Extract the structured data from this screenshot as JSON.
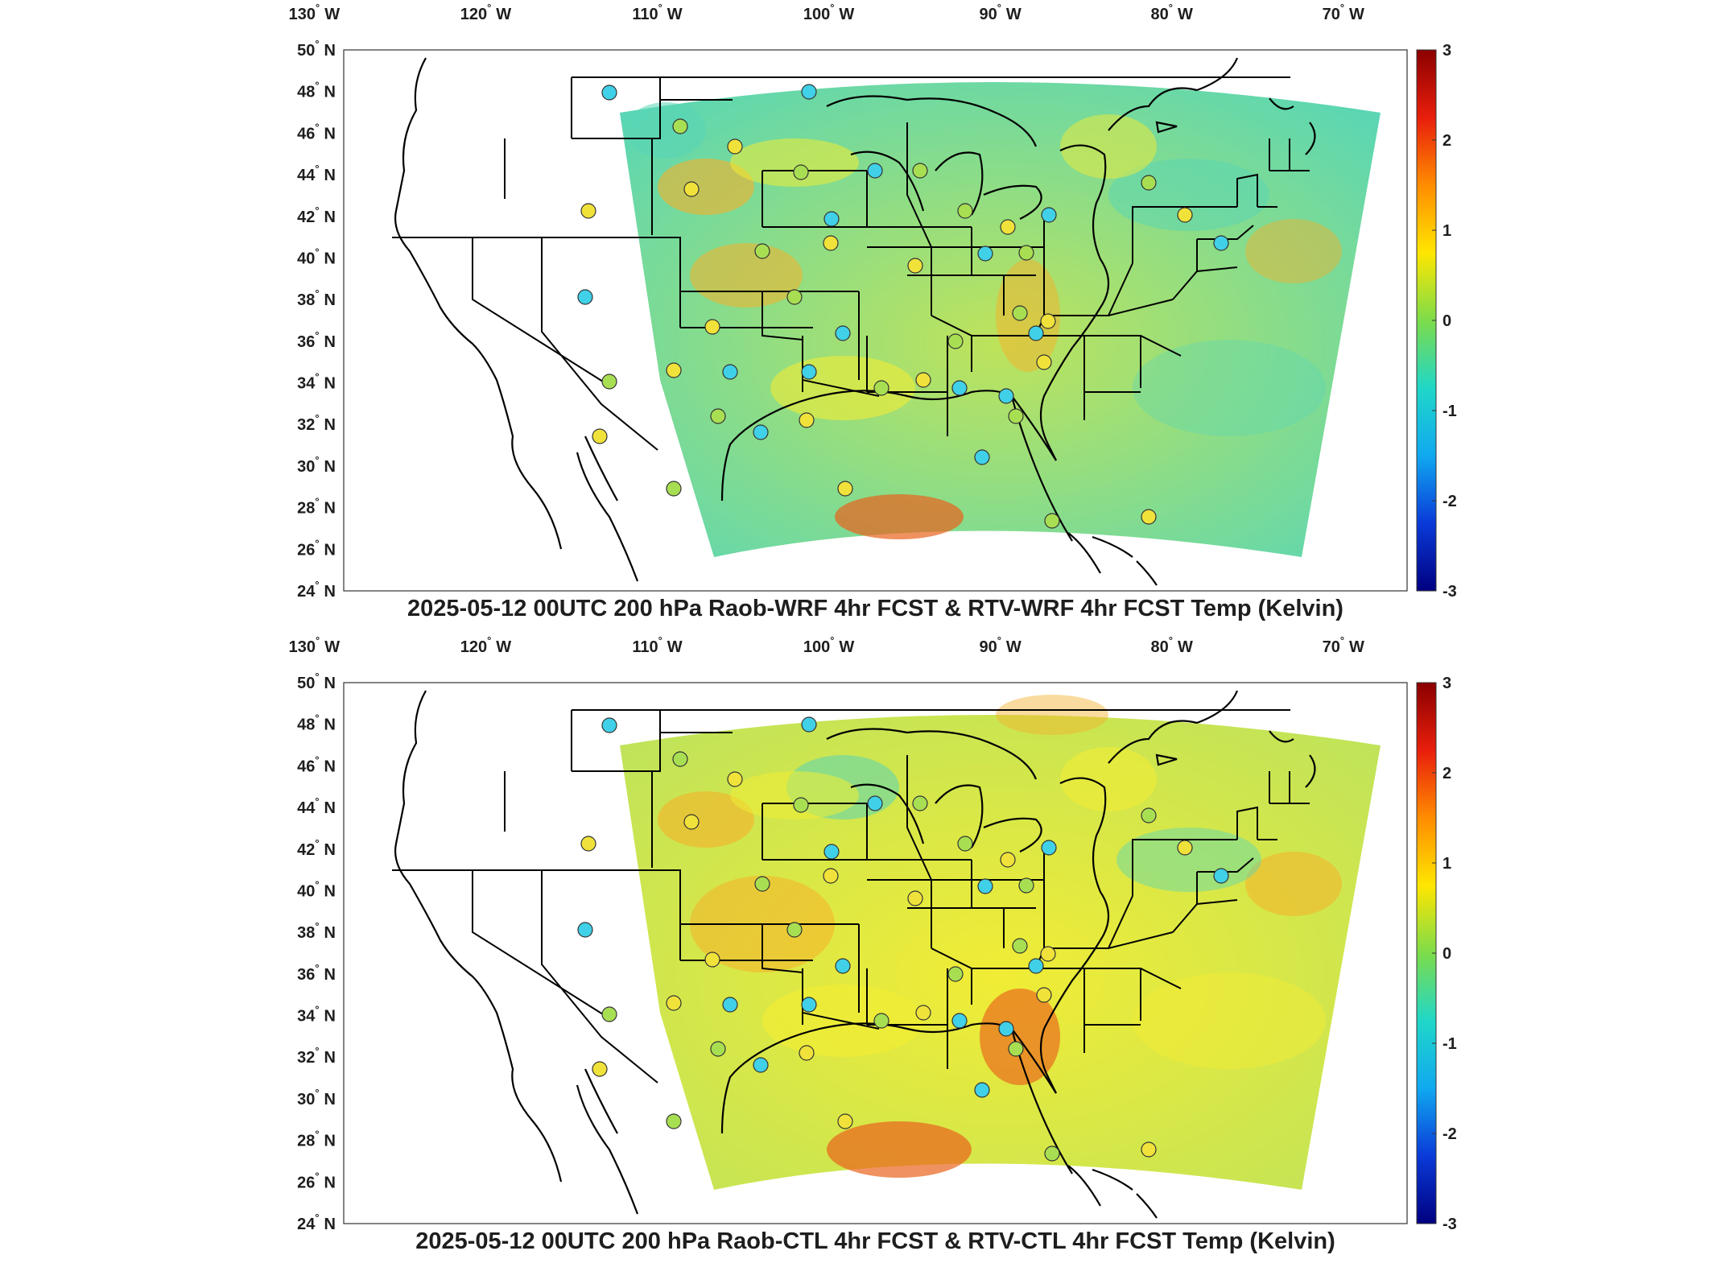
{
  "panels": [
    {
      "id": "top",
      "title": "2025-05-12 00UTC 200 hPa Raob-WRF 4hr FCST & RTV-WRF 4hr FCST Temp (Kelvin)",
      "tone": "cool"
    },
    {
      "id": "bottom",
      "title": "2025-05-12 00UTC 200 hPa Raob-CTL 4hr FCST & RTV-CTL 4hr FCST Temp (Kelvin)",
      "tone": "warm"
    }
  ],
  "lon_labels": [
    {
      "num": "130",
      "hemi": "W",
      "value": -130
    },
    {
      "num": "120",
      "hemi": "W",
      "value": -120
    },
    {
      "num": "110",
      "hemi": "W",
      "value": -110
    },
    {
      "num": "100",
      "hemi": "W",
      "value": -100
    },
    {
      "num": "90",
      "hemi": "W",
      "value": -90
    },
    {
      "num": "80",
      "hemi": "W",
      "value": -80
    },
    {
      "num": "70",
      "hemi": "W",
      "value": -70
    }
  ],
  "lat_labels": [
    {
      "num": "50",
      "hemi": "N",
      "value": 50
    },
    {
      "num": "48",
      "hemi": "N",
      "value": 48
    },
    {
      "num": "46",
      "hemi": "N",
      "value": 46
    },
    {
      "num": "44",
      "hemi": "N",
      "value": 44
    },
    {
      "num": "42",
      "hemi": "N",
      "value": 42
    },
    {
      "num": "40",
      "hemi": "N",
      "value": 40
    },
    {
      "num": "38",
      "hemi": "N",
      "value": 38
    },
    {
      "num": "36",
      "hemi": "N",
      "value": 36
    },
    {
      "num": "34",
      "hemi": "N",
      "value": 34
    },
    {
      "num": "32",
      "hemi": "N",
      "value": 32
    },
    {
      "num": "30",
      "hemi": "N",
      "value": 30
    },
    {
      "num": "28",
      "hemi": "N",
      "value": 28
    },
    {
      "num": "26",
      "hemi": "N",
      "value": 26
    },
    {
      "num": "24",
      "hemi": "N",
      "value": 24
    }
  ],
  "degree_symbol": "°",
  "colorbar": {
    "ticks": [
      "3",
      "2",
      "1",
      "0",
      "-1",
      "-2",
      "-3"
    ],
    "stops": [
      "#8b0000",
      "#e81e0c",
      "#ff8c00",
      "#ffe600",
      "#7ddc4a",
      "#20d7c8",
      "#10a9f0",
      "#0a3ad8",
      "#000080"
    ]
  },
  "colors": {
    "field_base": "#bfe35a",
    "field_yellow": "#f1ec35",
    "field_cyan": "#58d6b6",
    "field_orange": "#f5b02a",
    "field_red": "#e9621c",
    "map_line": "#000000"
  }
}
